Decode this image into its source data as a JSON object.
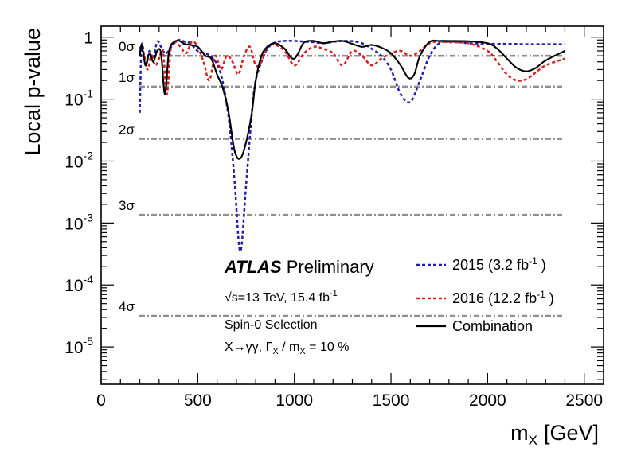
{
  "chart_data": {
    "type": "line",
    "xlabel": "m",
    "xlabel_sub": "X",
    "xlabel_unit": "[GeV]",
    "ylabel": "Local p-value",
    "xlim": [
      0,
      2600
    ],
    "ylim": [
      2.5e-06,
      1.5
    ],
    "yscale": "log",
    "x_ticks": [
      0,
      500,
      1000,
      1500,
      2000,
      2500
    ],
    "y_ticks": [
      {
        "value": 1,
        "base": "1",
        "exp": ""
      },
      {
        "value": 0.1,
        "base": "10",
        "exp": "-1"
      },
      {
        "value": 0.01,
        "base": "10",
        "exp": "-2"
      },
      {
        "value": 0.001,
        "base": "10",
        "exp": "-3"
      },
      {
        "value": 0.0001,
        "base": "10",
        "exp": "-4"
      },
      {
        "value": 1e-05,
        "base": "10",
        "exp": "-5"
      }
    ],
    "sigma_lines": [
      {
        "label": "0σ",
        "value": 0.5
      },
      {
        "label": "1σ",
        "value": 0.159
      },
      {
        "label": "2σ",
        "value": 0.0228
      },
      {
        "label": "3σ",
        "value": 0.00135
      },
      {
        "label": "4σ",
        "value": 3.17e-05
      }
    ],
    "annotation": {
      "experiment": "ATLAS",
      "status": "Preliminary",
      "energy_line": "√s=13 TeV, 15.4 fb",
      "energy_sup": "-1",
      "selection": "Spin-0 Selection",
      "process": "X→γγ,  Γ",
      "process_sub1": "X",
      "process_mid": " / m",
      "process_sub2": "X",
      "process_end": " = 10 %"
    },
    "series": [
      {
        "name": "2015 (3.2 fb",
        "name_sup": "-1",
        "name_end": " )",
        "color": "#1f1fa8",
        "style": "dashed",
        "x": [
          200,
          210,
          230,
          250,
          270,
          290,
          310,
          330,
          350,
          370,
          400,
          430,
          460,
          500,
          540,
          580,
          620,
          660,
          690,
          720,
          750,
          780,
          800,
          830,
          860,
          900,
          950,
          1000,
          1050,
          1100,
          1150,
          1200,
          1250,
          1300,
          1350,
          1400,
          1450,
          1500,
          1550,
          1600,
          1650,
          1700,
          1750,
          1800,
          1850,
          1900,
          1950,
          2000,
          2100,
          2200,
          2300,
          2400
        ],
        "y": [
          0.06,
          0.75,
          0.35,
          0.6,
          0.45,
          0.85,
          0.7,
          0.55,
          0.6,
          0.75,
          0.9,
          0.85,
          0.8,
          0.6,
          0.55,
          0.45,
          0.25,
          0.05,
          0.005,
          0.00035,
          0.004,
          0.06,
          0.2,
          0.4,
          0.65,
          0.82,
          0.87,
          0.87,
          0.85,
          0.83,
          0.8,
          0.84,
          0.87,
          0.86,
          0.8,
          0.65,
          0.5,
          0.3,
          0.12,
          0.09,
          0.2,
          0.5,
          0.8,
          0.85,
          0.83,
          0.8,
          0.79,
          0.78,
          0.78,
          0.77,
          0.77,
          0.77
        ]
      },
      {
        "name": "2016 (12.2 fb",
        "name_sup": "-1",
        "name_end": " )",
        "color": "#d42020",
        "style": "dashed",
        "x": [
          200,
          220,
          240,
          260,
          280,
          300,
          320,
          340,
          360,
          380,
          410,
          440,
          470,
          500,
          530,
          560,
          590,
          620,
          650,
          680,
          710,
          740,
          770,
          800,
          830,
          860,
          900,
          950,
          1000,
          1050,
          1100,
          1150,
          1200,
          1250,
          1300,
          1350,
          1400,
          1450,
          1500,
          1550,
          1600,
          1650,
          1700,
          1750,
          1800,
          1900,
          2000,
          2050,
          2100,
          2150,
          2200,
          2250,
          2300,
          2400
        ],
        "y": [
          0.7,
          0.55,
          0.3,
          0.5,
          0.35,
          0.45,
          0.6,
          0.12,
          0.65,
          0.85,
          0.7,
          0.55,
          0.85,
          0.7,
          0.4,
          0.2,
          0.5,
          0.3,
          0.5,
          0.4,
          0.25,
          0.5,
          0.7,
          0.35,
          0.4,
          0.7,
          0.75,
          0.6,
          0.35,
          0.55,
          0.7,
          0.65,
          0.55,
          0.35,
          0.6,
          0.5,
          0.35,
          0.45,
          0.55,
          0.6,
          0.5,
          0.6,
          0.8,
          0.85,
          0.83,
          0.8,
          0.6,
          0.4,
          0.25,
          0.2,
          0.21,
          0.27,
          0.35,
          0.45
        ]
      },
      {
        "name": "Combination",
        "color": "#000000",
        "style": "solid",
        "x": [
          200,
          210,
          230,
          250,
          270,
          290,
          310,
          330,
          350,
          370,
          400,
          430,
          460,
          500,
          540,
          570,
          600,
          630,
          660,
          690,
          720,
          750,
          780,
          800,
          830,
          860,
          900,
          950,
          980,
          1000,
          1020,
          1050,
          1100,
          1150,
          1200,
          1250,
          1300,
          1350,
          1400,
          1450,
          1500,
          1550,
          1590,
          1620,
          1650,
          1700,
          1750,
          1800,
          1900,
          2000,
          2050,
          2100,
          2150,
          2200,
          2250,
          2300,
          2400
        ],
        "y": [
          0.5,
          0.75,
          0.35,
          0.55,
          0.4,
          0.6,
          0.55,
          0.12,
          0.55,
          0.8,
          0.88,
          0.78,
          0.75,
          0.7,
          0.5,
          0.45,
          0.25,
          0.15,
          0.06,
          0.015,
          0.011,
          0.02,
          0.06,
          0.2,
          0.5,
          0.7,
          0.8,
          0.65,
          0.48,
          0.45,
          0.55,
          0.82,
          0.87,
          0.8,
          0.85,
          0.87,
          0.78,
          0.7,
          0.75,
          0.68,
          0.55,
          0.35,
          0.22,
          0.25,
          0.5,
          0.84,
          0.87,
          0.87,
          0.86,
          0.8,
          0.65,
          0.45,
          0.32,
          0.28,
          0.32,
          0.42,
          0.6
        ]
      }
    ]
  }
}
